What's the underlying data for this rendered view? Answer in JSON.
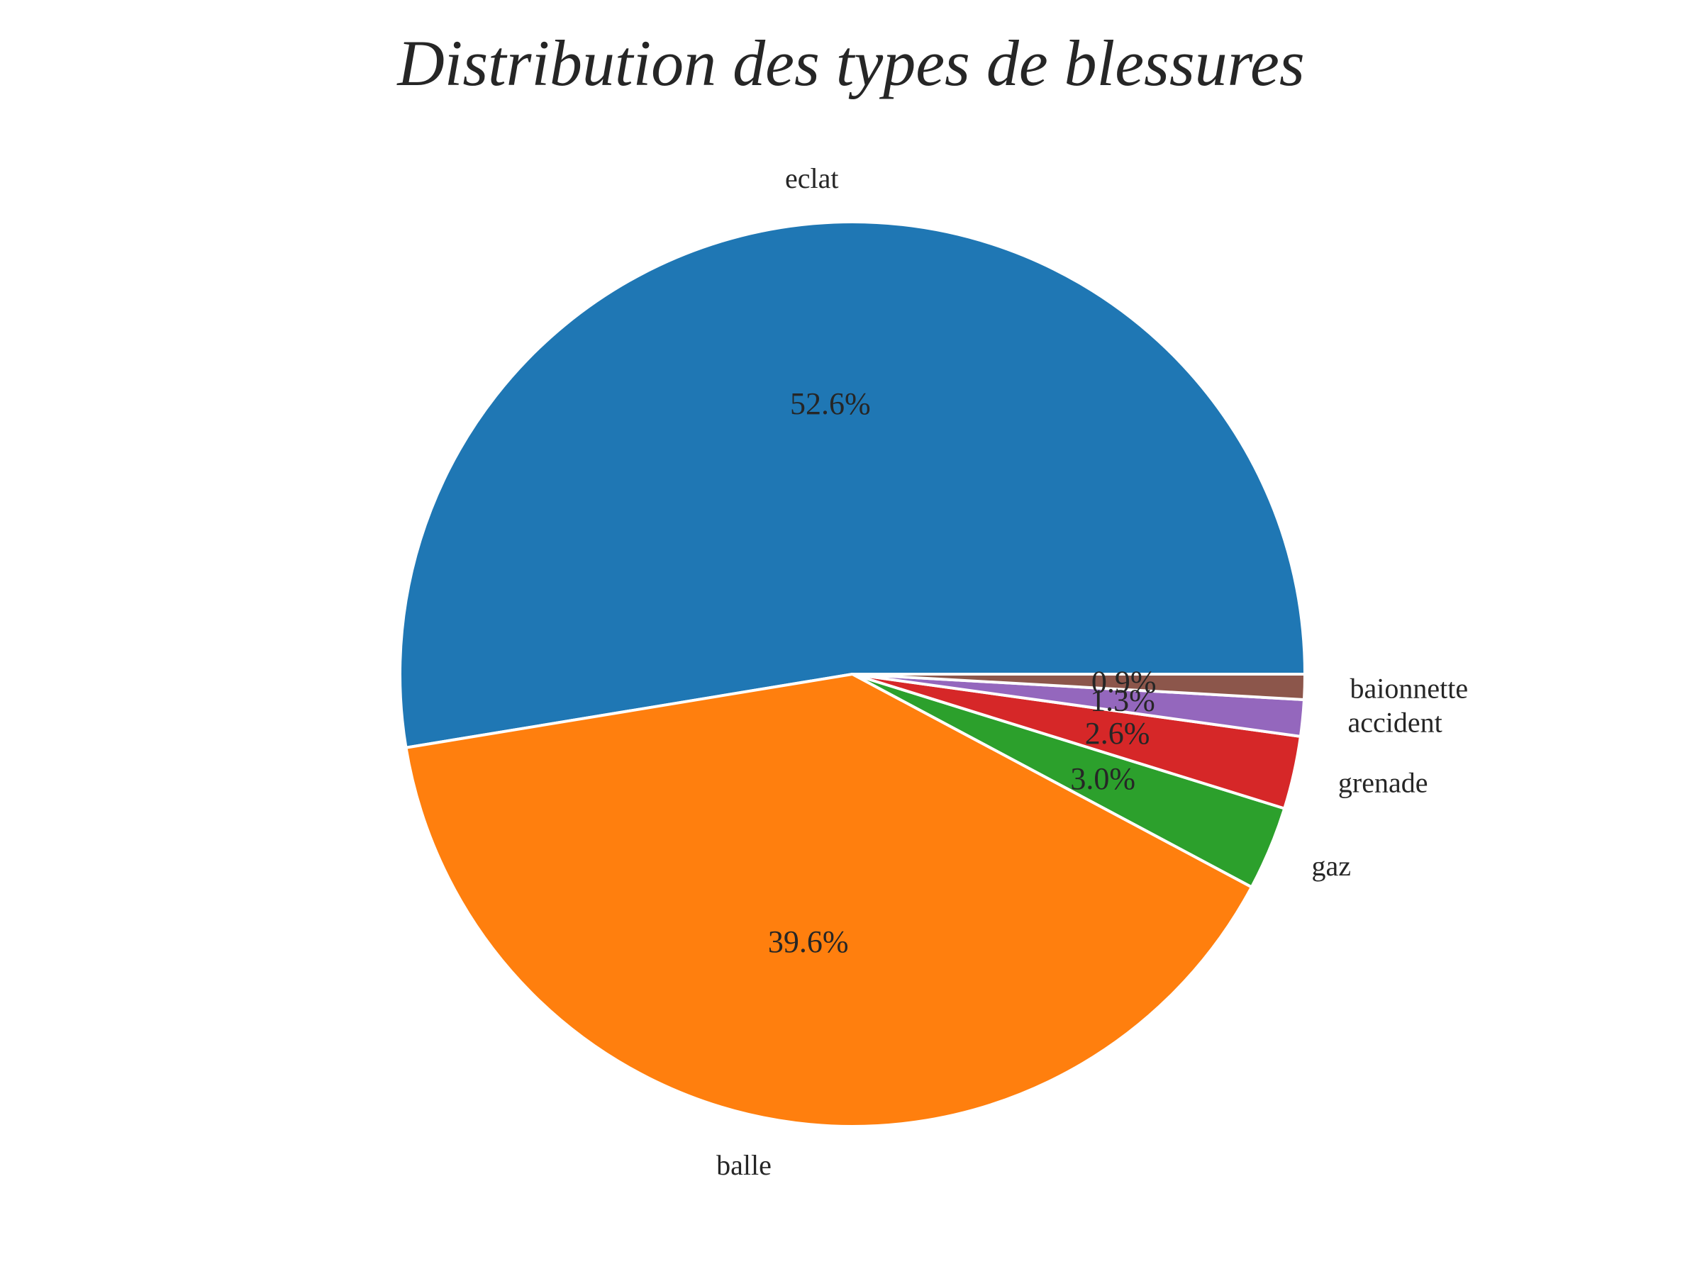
{
  "chart_data": {
    "type": "pie",
    "title": "Distribution des types de blessures",
    "start_angle_deg": 0,
    "direction": "counterclockwise",
    "slices": [
      {
        "label": "eclat",
        "value": 52.6,
        "pct_label": "52.6%",
        "color": "#1f77b4"
      },
      {
        "label": "balle",
        "value": 39.6,
        "pct_label": "39.6%",
        "color": "#ff7f0e"
      },
      {
        "label": "gaz",
        "value": 3.0,
        "pct_label": "3.0%",
        "color": "#2ca02c"
      },
      {
        "label": "grenade",
        "value": 2.6,
        "pct_label": "2.6%",
        "color": "#d62728"
      },
      {
        "label": "accident",
        "value": 1.3,
        "pct_label": "1.3%",
        "color": "#9467bd"
      },
      {
        "label": "baionnette",
        "value": 0.9,
        "pct_label": "0.9%",
        "color": "#8c564b"
      }
    ]
  }
}
